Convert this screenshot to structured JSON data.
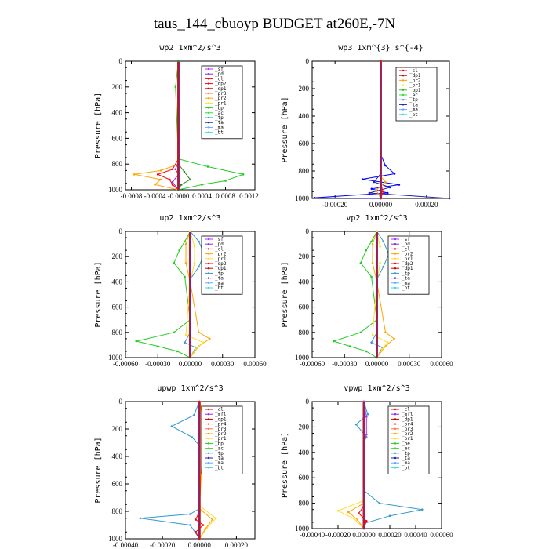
{
  "page": {
    "title": "taus_144_cbuoyp  BUDGET at260E,-7N"
  },
  "chart_data": [
    {
      "type": "line",
      "title": "wp2  1xm^2/s^3",
      "ylabel": "Pressure [hPa]",
      "xlim": [
        -0.0009,
        0.0013
      ],
      "ylim": [
        1000,
        0
      ],
      "yticks": [
        0,
        200,
        400,
        600,
        800,
        1000
      ],
      "xticks": [
        -0.0008,
        -0.0004,
        0.0,
        0.0004,
        0.0008,
        0.0012
      ],
      "xticklabels": [
        "-0.0008",
        "-0.0004",
        "-0.0000",
        "0.0004",
        "0.0008",
        "0.0012"
      ],
      "legend": [
        "_sf",
        "_pd",
        "_cl",
        "_dp2",
        "_dp1",
        "_pr3",
        "_pr2",
        "_pr1",
        "_bp",
        "_ac",
        "_tp",
        "_ta",
        "_ma",
        "_bt"
      ],
      "series": [
        {
          "name": "_dp2",
          "color": "#ff0000",
          "x": [
            0,
            0,
            -0.0001,
            -0.00035,
            -0.00015,
            -0.0001,
            0
          ],
          "y": [
            0,
            760,
            840,
            880,
            920,
            960,
            1000
          ]
        },
        {
          "name": "_pr3",
          "color": "#ffa500",
          "x": [
            0,
            0,
            -0.0003,
            -0.00075,
            -0.0003,
            -0.0004,
            0
          ],
          "y": [
            0,
            800,
            850,
            880,
            920,
            960,
            1000
          ]
        },
        {
          "name": "_ac",
          "color": "#22cc22",
          "x": [
            0,
            -5e-05,
            0,
            0.0005,
            0.0011,
            0.0008,
            0.0004,
            0
          ],
          "y": [
            0,
            200,
            760,
            820,
            880,
            930,
            960,
            1000
          ]
        },
        {
          "name": "_pd",
          "color": "#8a2be2",
          "x": [
            0,
            0,
            -5e-05,
            0,
            -0.0001,
            0
          ],
          "y": [
            0,
            780,
            840,
            880,
            940,
            1000
          ]
        },
        {
          "name": "_bp",
          "color": "#228b22",
          "x": [
            0,
            0,
            0.0001,
            0.0002,
            5e-05,
            0
          ],
          "y": [
            0,
            800,
            860,
            920,
            960,
            1000
          ]
        }
      ]
    },
    {
      "type": "line",
      "title": "wp3  1xm^{3} s^{-4}",
      "ylabel": "Pressure [hPa]",
      "xlim": [
        -0.0003,
        0.0003
      ],
      "ylim": [
        1000,
        0
      ],
      "yticks": [
        0,
        200,
        400,
        600,
        800,
        1000
      ],
      "xticks": [
        -0.0002,
        0.0,
        0.0002
      ],
      "xticklabels": [
        "-0.00020",
        "0.00000",
        "0.00020"
      ],
      "legend": [
        "_cl",
        "_dp1",
        "_pr2",
        "_pr1",
        "_bp1",
        "_ac",
        "_tp",
        "_ta",
        "_ma",
        "_bt"
      ],
      "series": [
        {
          "name": "_tp",
          "color": "#0000ff",
          "x": [
            0,
            0,
            2e-05,
            6e-05,
            -8e-05,
            8e-05,
            -4e-05,
            3e-05,
            -0.00029,
            0
          ],
          "y": [
            0,
            680,
            760,
            820,
            860,
            900,
            930,
            960,
            995,
            1000
          ]
        },
        {
          "name": "_ta",
          "color": "#2222aa",
          "x": [
            0,
            0,
            -3e-05,
            4e-05,
            -5e-05,
            0.0003
          ],
          "y": [
            0,
            820,
            880,
            920,
            960,
            1000
          ]
        },
        {
          "name": "_pr2",
          "color": "#ffa500",
          "x": [
            0,
            0,
            2e-05,
            -2e-05,
            0
          ],
          "y": [
            0,
            840,
            880,
            940,
            1000
          ]
        },
        {
          "name": "_dp1",
          "color": "#ff0000",
          "x": [
            0,
            0,
            1e-05,
            0
          ],
          "y": [
            0,
            900,
            950,
            1000
          ]
        }
      ]
    },
    {
      "type": "line",
      "title": "up2  1xm^2/s^3",
      "ylabel": "Pressure [hPa]",
      "xlim": [
        -0.0006,
        0.0006
      ],
      "ylim": [
        1000,
        0
      ],
      "yticks": [
        0,
        200,
        400,
        600,
        800,
        1000
      ],
      "xticks": [
        -0.0006,
        -0.0003,
        0.0,
        0.0003,
        0.0006
      ],
      "xticklabels": [
        "-0.00060",
        "-0.00030",
        "0.00000",
        "0.00030",
        "0.00060"
      ],
      "legend": [
        "_sf",
        "_pd",
        "_cl",
        "_pr2",
        "_pr1",
        "_dp2",
        "_dp1",
        "_tp",
        "_ta",
        "_ma",
        "_bt"
      ],
      "series": [
        {
          "name": "_dp1",
          "color": "#22cc22",
          "x": [
            0,
            -5e-05,
            -0.0001,
            -0.00015,
            -5e-05,
            0,
            -0.00015,
            -0.0005,
            -0.0003,
            -0.00012,
            0
          ],
          "y": [
            0,
            80,
            150,
            250,
            360,
            700,
            800,
            870,
            910,
            950,
            1000
          ]
        },
        {
          "name": "_tp",
          "color": "#3399cc",
          "x": [
            0,
            8e-05,
            0.00013,
            8e-05,
            0,
            0,
            -5e-05,
            5e-05,
            0
          ],
          "y": [
            0,
            80,
            180,
            280,
            380,
            800,
            880,
            920,
            1000
          ]
        },
        {
          "name": "_pr2",
          "color": "#ffa500",
          "x": [
            0,
            -4e-05,
            -4e-05,
            0,
            8e-05,
            0.00018,
            8e-05,
            0
          ],
          "y": [
            0,
            100,
            250,
            400,
            800,
            850,
            910,
            1000
          ]
        },
        {
          "name": "_pr1",
          "color": "#ffdd33",
          "x": [
            0,
            4e-05,
            4e-05,
            0,
            -4e-05,
            0.00012,
            5e-05,
            0
          ],
          "y": [
            0,
            120,
            250,
            400,
            820,
            880,
            930,
            1000
          ]
        }
      ]
    },
    {
      "type": "line",
      "title": "vp2  1xm^2/s^3",
      "ylabel": "Pressure [hPa]",
      "xlim": [
        -0.0006,
        0.0006
      ],
      "ylim": [
        1000,
        0
      ],
      "yticks": [
        0,
        200,
        400,
        600,
        800,
        1000
      ],
      "xticks": [
        -0.0006,
        -0.0003,
        0.0,
        0.0003,
        0.0006
      ],
      "xticklabels": [
        "-0.00060",
        "-0.00030",
        "0.00000",
        "0.00030",
        "0.00060"
      ],
      "legend": [
        "_sf",
        "_pd",
        "_cl",
        "_pr2",
        "_pr1",
        "_dp2",
        "_dp1",
        "_tp",
        "_ta",
        "_ma",
        "_bt"
      ],
      "series": [
        {
          "name": "_dp1",
          "color": "#22cc22",
          "x": [
            0,
            -5e-05,
            -0.0001,
            -0.00015,
            -5e-05,
            0,
            -0.00015,
            -0.0004,
            -0.00025,
            -0.0001,
            0
          ],
          "y": [
            0,
            80,
            150,
            250,
            360,
            700,
            800,
            870,
            910,
            950,
            1000
          ]
        },
        {
          "name": "_tp",
          "color": "#3399cc",
          "x": [
            0,
            6e-05,
            0.00011,
            6e-05,
            0,
            0,
            -5e-05,
            5e-05,
            0
          ],
          "y": [
            0,
            80,
            180,
            280,
            380,
            800,
            880,
            920,
            1000
          ]
        },
        {
          "name": "_pr2",
          "color": "#ffa500",
          "x": [
            0,
            -4e-05,
            -4e-05,
            0,
            8e-05,
            0.00016,
            8e-05,
            0
          ],
          "y": [
            0,
            100,
            250,
            400,
            800,
            850,
            910,
            1000
          ]
        },
        {
          "name": "_pr1",
          "color": "#ffdd33",
          "x": [
            0,
            3e-05,
            3e-05,
            0,
            -4e-05,
            0.0001,
            5e-05,
            0
          ],
          "y": [
            0,
            120,
            250,
            400,
            820,
            880,
            930,
            1000
          ]
        }
      ]
    },
    {
      "type": "line",
      "title": "upwp  1xm^2/s^3",
      "ylabel": "Pressure [hPa]",
      "xlim": [
        -0.0004,
        0.0003
      ],
      "ylim": [
        1000,
        0
      ],
      "yticks": [
        0,
        200,
        400,
        600,
        800,
        1000
      ],
      "xticks": [
        -0.0004,
        -0.0002,
        0.0,
        0.0002
      ],
      "xticklabels": [
        "-0.00040",
        "-0.00020",
        "0.00000",
        "0.00020"
      ],
      "legend": [
        "_cl",
        "_mfl",
        "_dp1",
        "_pr4",
        "_pr3",
        "_pr2",
        "_pr1",
        "_bp",
        "_ac",
        "_tp",
        "_ta",
        "_ma",
        "_bt"
      ],
      "series": [
        {
          "name": "_tp",
          "color": "#3399cc",
          "x": [
            0,
            -3e-05,
            -0.00015,
            -4e-05,
            0,
            0,
            -5e-05,
            -0.00032,
            -5e-05,
            0
          ],
          "y": [
            0,
            100,
            180,
            260,
            320,
            780,
            820,
            850,
            900,
            1000
          ]
        },
        {
          "name": "_pr1",
          "color": "#ffdd33",
          "x": [
            0,
            3e-05,
            2e-05,
            0,
            9e-05,
            4e-05,
            0
          ],
          "y": [
            0,
            100,
            280,
            760,
            850,
            920,
            1000
          ]
        },
        {
          "name": "_pr2",
          "color": "#ffa500",
          "x": [
            0,
            2e-05,
            2e-05,
            0,
            7e-05,
            3e-05,
            0
          ],
          "y": [
            0,
            120,
            260,
            780,
            860,
            930,
            1000
          ]
        },
        {
          "name": "_dp1",
          "color": "#ff0000",
          "x": [
            0,
            0,
            -2e-05,
            2e-05,
            -2e-05,
            0
          ],
          "y": [
            0,
            800,
            860,
            900,
            950,
            1000
          ]
        }
      ]
    },
    {
      "type": "line",
      "title": "vpwp  1xm^2/s^3",
      "ylabel": "Pressure [hPa]",
      "xlim": [
        -0.0004,
        0.0006
      ],
      "ylim": [
        1000,
        0
      ],
      "yticks": [
        0,
        200,
        400,
        600,
        800,
        1000
      ],
      "xticks": [
        -0.0004,
        -0.0002,
        0.0,
        0.0002,
        0.0004,
        0.0006
      ],
      "xticklabels": [
        "-0.00040",
        "-0.00020",
        "0.00000",
        "0.00020",
        "0.00040",
        "0.00060"
      ],
      "legend": [
        "_cl",
        "_mfl",
        "_dp1",
        "_pr4",
        "_pr3",
        "_pr2",
        "_pr1",
        "_be",
        "_ac",
        "_tp",
        "_ta",
        "_ma",
        "_bt"
      ],
      "series": [
        {
          "name": "_tp",
          "color": "#3399cc",
          "x": [
            0,
            0,
            0.00012,
            0.00045,
            0.0002,
            0,
            0
          ],
          "y": [
            0,
            700,
            800,
            850,
            900,
            960,
            1000
          ]
        },
        {
          "name": "_tp2",
          "color": "#3399cc",
          "x": [
            0,
            3e-05,
            -6e-05,
            2e-05,
            0
          ],
          "y": [
            0,
            100,
            180,
            280,
            320
          ]
        },
        {
          "name": "_pr1",
          "color": "#ffdd33",
          "x": [
            0,
            0,
            -0.0002,
            -8e-05,
            0
          ],
          "y": [
            0,
            780,
            860,
            920,
            1000
          ]
        },
        {
          "name": "_pr2",
          "color": "#ffa500",
          "x": [
            0,
            0,
            -0.00012,
            -5e-05,
            0
          ],
          "y": [
            0,
            800,
            870,
            930,
            1000
          ]
        },
        {
          "name": "_dp1",
          "color": "#ff0000",
          "x": [
            0,
            0,
            -4e-05,
            2e-05,
            0
          ],
          "y": [
            0,
            820,
            880,
            940,
            1000
          ]
        },
        {
          "name": "_pr3",
          "color": "#aa33ff",
          "x": [
            0,
            2e-05,
            2e-05,
            0
          ],
          "y": [
            0,
            120,
            260,
            320
          ]
        }
      ]
    }
  ],
  "legend_colors": {
    "_sf": "#aa33ff",
    "_pd": "#8a2be2",
    "_cl": "#ff0000",
    "_dp2": "#ff0000",
    "_dp1": "#cc0000",
    "_pr4": "#ff4444",
    "_pr3": "#ff7733",
    "_pr2": "#ffa500",
    "_pr1": "#ffdd33",
    "_bp": "#22cc22",
    "_bp1": "#22cc22",
    "_be": "#22cc22",
    "_ac": "#33dd33",
    "_tp": "#3399cc",
    "_ta": "#2222aa",
    "_ma": "#66aaff",
    "_bt": "#33dddd",
    "_mfl": "#8a2be2"
  }
}
